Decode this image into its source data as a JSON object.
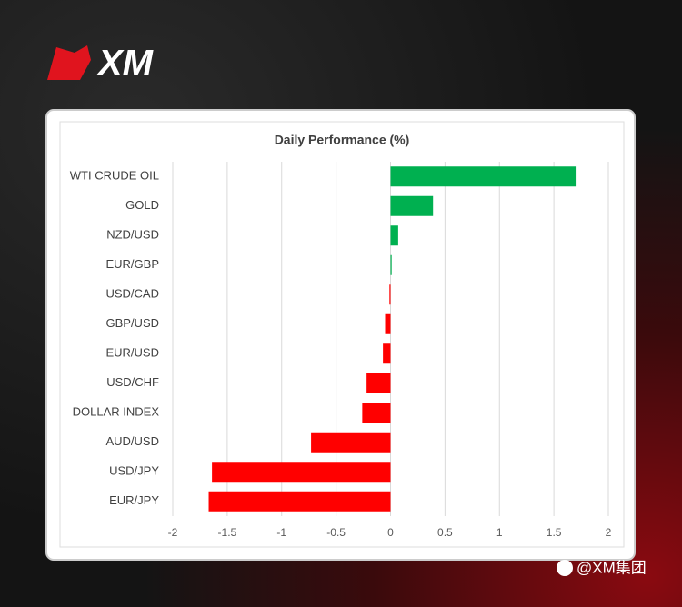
{
  "brand": {
    "logo": "XM"
  },
  "chart_data": {
    "type": "hbar",
    "title": "Daily Performance (%)",
    "categories": [
      "WTI CRUDE OIL",
      "GOLD",
      "NZD/USD",
      "EUR/GBP",
      "USD/CAD",
      "GBP/USD",
      "EUR/USD",
      "USD/CHF",
      "DOLLAR INDEX",
      "AUD/USD",
      "USD/JPY",
      "EUR/JPY"
    ],
    "values": [
      1.7,
      0.39,
      0.07,
      0.01,
      -0.01,
      -0.05,
      -0.07,
      -0.22,
      -0.26,
      -0.73,
      -1.64,
      -1.67
    ],
    "positive_color": "#00b050",
    "negative_color": "#ff0000",
    "xlim": [
      -2,
      2
    ],
    "xticks": [
      -2,
      -1.5,
      -1,
      -0.5,
      0,
      0.5,
      1,
      1.5,
      2
    ],
    "grid": true
  },
  "footer": {
    "handle": "@XM集团"
  }
}
